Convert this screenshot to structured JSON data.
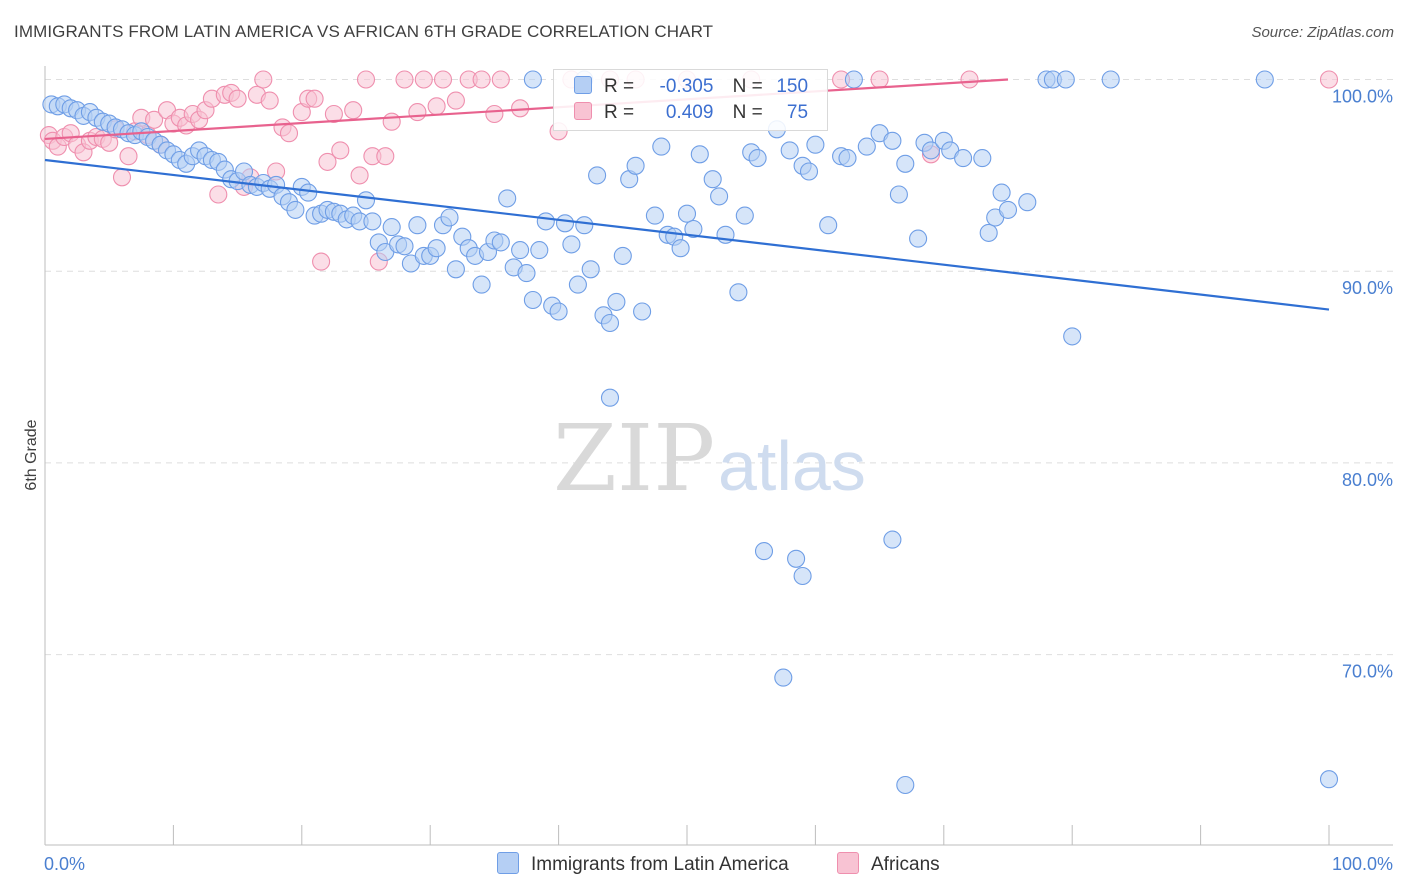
{
  "chart_data": {
    "type": "scatter",
    "title": "IMMIGRANTS FROM LATIN AMERICA VS AFRICAN 6TH GRADE CORRELATION CHART",
    "source": "Source: ZipAtlas.com",
    "watermark": {
      "zip": "ZIP",
      "atlas": "atlas"
    },
    "ylabel": "6th Grade",
    "xlabel": "",
    "xlim": [
      0,
      100
    ],
    "ylim": [
      60.5,
      101.5
    ],
    "x_tick_labels": {
      "left": "0.0%",
      "right": "100.0%"
    },
    "y_ticks": [
      {
        "value": 100,
        "label": "100.0%"
      },
      {
        "value": 90,
        "label": "90.0%"
      },
      {
        "value": 80,
        "label": "80.0%"
      },
      {
        "value": 70,
        "label": "70.0%"
      }
    ],
    "legend_stats": [
      {
        "r_label": "R =",
        "r_value": "-0.305",
        "n_label": "N =",
        "n_value": "150"
      },
      {
        "r_label": "R =",
        "r_value": "0.409",
        "n_label": "N =",
        "n_value": "75"
      }
    ],
    "series": [
      {
        "name": "Immigrants from Latin America",
        "color": "#6f9ee6",
        "fill": "#b5cff4",
        "line_color": "#2f6fd3",
        "trend": {
          "x": [
            0,
            100
          ],
          "y": [
            95.8,
            88.0
          ]
        },
        "points": [
          [
            0.5,
            98.7
          ],
          [
            1.0,
            98.6
          ],
          [
            1.5,
            98.7
          ],
          [
            2.0,
            98.5
          ],
          [
            2.5,
            98.4
          ],
          [
            3.0,
            98.1
          ],
          [
            3.5,
            98.3
          ],
          [
            4.0,
            98.0
          ],
          [
            4.5,
            97.8
          ],
          [
            5.0,
            97.7
          ],
          [
            5.5,
            97.5
          ],
          [
            6.0,
            97.4
          ],
          [
            6.5,
            97.2
          ],
          [
            7.0,
            97.1
          ],
          [
            7.5,
            97.3
          ],
          [
            8.0,
            97.0
          ],
          [
            8.5,
            96.8
          ],
          [
            9.0,
            96.6
          ],
          [
            9.5,
            96.3
          ],
          [
            10.0,
            96.1
          ],
          [
            10.5,
            95.8
          ],
          [
            11.0,
            95.6
          ],
          [
            11.5,
            96.0
          ],
          [
            12.0,
            96.3
          ],
          [
            12.5,
            96.0
          ],
          [
            13.0,
            95.8
          ],
          [
            13.5,
            95.7
          ],
          [
            14.0,
            95.3
          ],
          [
            14.5,
            94.8
          ],
          [
            15.0,
            94.7
          ],
          [
            15.5,
            95.2
          ],
          [
            16.0,
            94.5
          ],
          [
            16.5,
            94.4
          ],
          [
            17.0,
            94.6
          ],
          [
            17.5,
            94.3
          ],
          [
            18.0,
            94.5
          ],
          [
            18.5,
            93.9
          ],
          [
            19.0,
            93.6
          ],
          [
            19.5,
            93.2
          ],
          [
            20.0,
            94.4
          ],
          [
            20.5,
            94.1
          ],
          [
            21.0,
            92.9
          ],
          [
            21.5,
            93.0
          ],
          [
            22.0,
            93.2
          ],
          [
            22.5,
            93.1
          ],
          [
            23.0,
            93.0
          ],
          [
            23.5,
            92.7
          ],
          [
            24.0,
            92.9
          ],
          [
            24.5,
            92.6
          ],
          [
            25.0,
            93.7
          ],
          [
            25.5,
            92.6
          ],
          [
            26.0,
            91.5
          ],
          [
            26.5,
            91.0
          ],
          [
            27.0,
            92.3
          ],
          [
            27.5,
            91.4
          ],
          [
            28.0,
            91.3
          ],
          [
            28.5,
            90.4
          ],
          [
            29.0,
            92.4
          ],
          [
            29.5,
            90.8
          ],
          [
            30.0,
            90.8
          ],
          [
            30.5,
            91.2
          ],
          [
            31.0,
            92.4
          ],
          [
            31.5,
            92.8
          ],
          [
            32.0,
            90.1
          ],
          [
            32.5,
            91.8
          ],
          [
            33.0,
            91.2
          ],
          [
            33.5,
            90.8
          ],
          [
            34.0,
            89.3
          ],
          [
            34.5,
            91.0
          ],
          [
            35.0,
            91.6
          ],
          [
            35.5,
            91.5
          ],
          [
            36.0,
            93.8
          ],
          [
            36.5,
            90.2
          ],
          [
            37.0,
            91.1
          ],
          [
            37.5,
            89.9
          ],
          [
            38.0,
            88.5
          ],
          [
            38.5,
            91.1
          ],
          [
            39.0,
            92.6
          ],
          [
            39.5,
            88.2
          ],
          [
            40.0,
            87.9
          ],
          [
            40.5,
            92.5
          ],
          [
            41.0,
            91.4
          ],
          [
            41.5,
            89.3
          ],
          [
            42.0,
            92.4
          ],
          [
            42.5,
            90.1
          ],
          [
            43.0,
            95.0
          ],
          [
            43.5,
            87.7
          ],
          [
            44.0,
            87.3
          ],
          [
            44.5,
            88.4
          ],
          [
            45.0,
            90.8
          ],
          [
            45.5,
            94.8
          ],
          [
            46.0,
            95.5
          ],
          [
            46.5,
            87.9
          ],
          [
            47.5,
            92.9
          ],
          [
            48.0,
            96.5
          ],
          [
            48.5,
            91.9
          ],
          [
            49.0,
            91.8
          ],
          [
            49.5,
            91.2
          ],
          [
            50.0,
            93.0
          ],
          [
            50.5,
            92.2
          ],
          [
            51.0,
            96.1
          ],
          [
            52.0,
            94.8
          ],
          [
            52.5,
            93.9
          ],
          [
            53.0,
            91.9
          ],
          [
            54.0,
            88.9
          ],
          [
            54.5,
            92.9
          ],
          [
            55.0,
            96.2
          ],
          [
            55.5,
            95.9
          ],
          [
            57.0,
            97.4
          ],
          [
            58.0,
            96.3
          ],
          [
            59.0,
            95.5
          ],
          [
            59.5,
            95.2
          ],
          [
            60.0,
            96.6
          ],
          [
            61.0,
            92.4
          ],
          [
            62.0,
            96.0
          ],
          [
            62.5,
            95.9
          ],
          [
            63.0,
            100.0
          ],
          [
            64.0,
            96.5
          ],
          [
            65.0,
            97.2
          ],
          [
            66.0,
            96.8
          ],
          [
            66.5,
            94.0
          ],
          [
            67.0,
            95.6
          ],
          [
            68.0,
            91.7
          ],
          [
            68.5,
            96.7
          ],
          [
            69.0,
            96.3
          ],
          [
            70.0,
            96.8
          ],
          [
            70.5,
            96.3
          ],
          [
            71.5,
            95.9
          ],
          [
            73.0,
            95.9
          ],
          [
            73.5,
            92.0
          ],
          [
            74.0,
            92.8
          ],
          [
            74.5,
            94.1
          ],
          [
            75.0,
            93.2
          ],
          [
            76.5,
            93.6
          ],
          [
            78.0,
            100.0
          ],
          [
            78.5,
            100.0
          ],
          [
            79.5,
            100.0
          ],
          [
            80.0,
            86.6
          ],
          [
            83.0,
            100.0
          ],
          [
            95.0,
            100.0
          ],
          [
            44.0,
            83.4
          ],
          [
            56.0,
            75.4
          ],
          [
            58.5,
            75.0
          ],
          [
            59.0,
            74.1
          ],
          [
            66.0,
            76.0
          ],
          [
            57.5,
            68.8
          ],
          [
            67.0,
            63.2
          ],
          [
            100.0,
            63.5
          ],
          [
            38.0,
            100.0
          ],
          [
            42.0,
            100.0
          ]
        ]
      },
      {
        "name": "Africans",
        "color": "#ef8fae",
        "fill": "#f8c3d3",
        "line_color": "#e8628e",
        "trend": {
          "x": [
            0,
            75
          ],
          "y": [
            96.9,
            100.0
          ]
        },
        "points": [
          [
            0.3,
            97.1
          ],
          [
            0.6,
            96.8
          ],
          [
            1.0,
            96.5
          ],
          [
            1.5,
            97.0
          ],
          [
            2.0,
            97.2
          ],
          [
            2.5,
            96.6
          ],
          [
            3.0,
            96.2
          ],
          [
            3.5,
            96.8
          ],
          [
            4.0,
            97.0
          ],
          [
            4.5,
            96.9
          ],
          [
            5.0,
            96.7
          ],
          [
            5.5,
            97.4
          ],
          [
            6.0,
            94.9
          ],
          [
            6.5,
            96.0
          ],
          [
            7.0,
            97.3
          ],
          [
            7.5,
            98.0
          ],
          [
            8.0,
            97.1
          ],
          [
            8.5,
            97.9
          ],
          [
            9.0,
            96.6
          ],
          [
            9.5,
            98.4
          ],
          [
            10.0,
            97.7
          ],
          [
            10.5,
            98.0
          ],
          [
            11.0,
            97.6
          ],
          [
            11.5,
            98.2
          ],
          [
            12.0,
            97.9
          ],
          [
            12.5,
            98.4
          ],
          [
            13.0,
            99.0
          ],
          [
            13.5,
            94.0
          ],
          [
            14.0,
            99.2
          ],
          [
            14.5,
            99.3
          ],
          [
            15.0,
            99.0
          ],
          [
            15.5,
            94.4
          ],
          [
            16.0,
            94.9
          ],
          [
            16.5,
            99.2
          ],
          [
            17.0,
            100.0
          ],
          [
            17.5,
            98.9
          ],
          [
            18.0,
            95.2
          ],
          [
            18.5,
            97.5
          ],
          [
            19.0,
            97.2
          ],
          [
            20.0,
            98.3
          ],
          [
            20.5,
            99.0
          ],
          [
            21.0,
            99.0
          ],
          [
            21.5,
            90.5
          ],
          [
            22.0,
            95.7
          ],
          [
            22.5,
            98.2
          ],
          [
            23.0,
            96.3
          ],
          [
            24.0,
            98.4
          ],
          [
            24.5,
            95.0
          ],
          [
            25.0,
            100.0
          ],
          [
            25.5,
            96.0
          ],
          [
            26.0,
            90.5
          ],
          [
            26.5,
            96.0
          ],
          [
            27.0,
            97.8
          ],
          [
            28.0,
            100.0
          ],
          [
            29.0,
            98.3
          ],
          [
            29.5,
            100.0
          ],
          [
            30.5,
            98.6
          ],
          [
            31.0,
            100.0
          ],
          [
            32.0,
            98.9
          ],
          [
            33.0,
            100.0
          ],
          [
            34.0,
            100.0
          ],
          [
            35.0,
            98.2
          ],
          [
            35.5,
            100.0
          ],
          [
            37.0,
            98.5
          ],
          [
            40.0,
            97.3
          ],
          [
            41.0,
            100.0
          ],
          [
            44.0,
            100.0
          ],
          [
            46.0,
            100.0
          ],
          [
            50.0,
            100.0
          ],
          [
            55.0,
            100.0
          ],
          [
            62.0,
            100.0
          ],
          [
            65.0,
            100.0
          ],
          [
            69.0,
            96.1
          ],
          [
            72.0,
            100.0
          ],
          [
            100.0,
            100.0
          ]
        ]
      }
    ]
  }
}
